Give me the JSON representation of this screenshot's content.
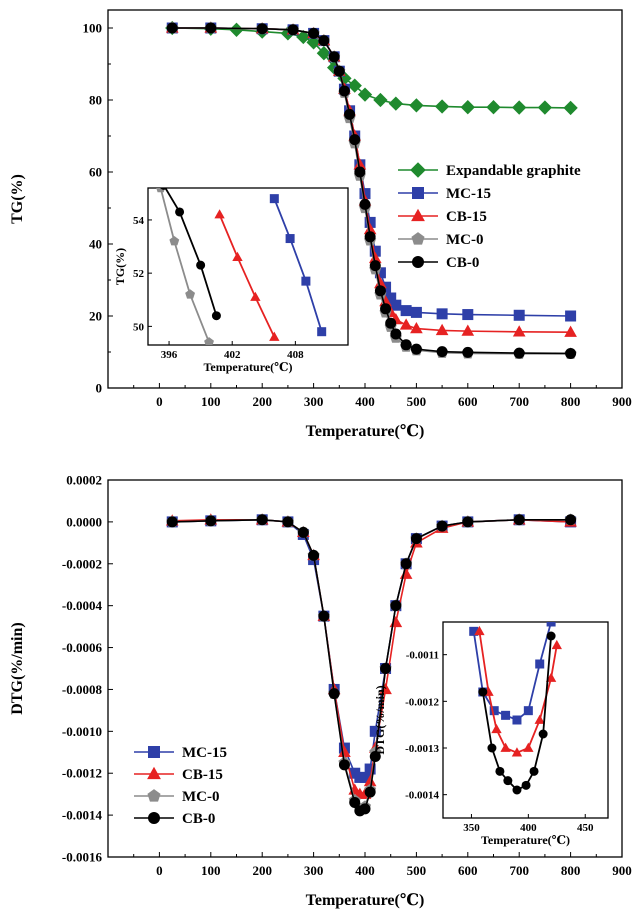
{
  "chart_data": [
    {
      "type": "line",
      "xlabel": "Temperature(℃)",
      "ylabel": "TG(%)",
      "xlim": [
        -100,
        900
      ],
      "ylim": [
        0,
        105
      ],
      "xticks": [
        "0",
        "100",
        "200",
        "300",
        "400",
        "500",
        "600",
        "700",
        "800",
        "900"
      ],
      "yticks": [
        "0",
        "20",
        "40",
        "60",
        "80",
        "100"
      ],
      "legend_position": "right",
      "series": [
        {
          "name": "Expandable graphite",
          "color": "#1f8a2e",
          "marker": "diamond",
          "x": [
            25,
            100,
            150,
            200,
            250,
            280,
            300,
            320,
            340,
            360,
            380,
            400,
            430,
            460,
            500,
            550,
            600,
            650,
            700,
            750,
            800
          ],
          "y": [
            100,
            99.8,
            99.5,
            99,
            98.5,
            97.5,
            96,
            93,
            89,
            86,
            84,
            81.5,
            80,
            79,
            78.5,
            78.2,
            78,
            78,
            77.9,
            77.9,
            77.8
          ]
        },
        {
          "name": "MC-15",
          "color": "#2e3fa8",
          "marker": "square",
          "x": [
            25,
            100,
            200,
            260,
            300,
            320,
            340,
            350,
            360,
            370,
            380,
            390,
            400,
            410,
            420,
            430,
            440,
            450,
            460,
            480,
            500,
            550,
            600,
            700,
            800
          ],
          "y": [
            100,
            100,
            99.8,
            99.5,
            98.5,
            96.5,
            92,
            88,
            83,
            77,
            70,
            62,
            54,
            46,
            38,
            32,
            28,
            25,
            23,
            21.5,
            21,
            20.6,
            20.4,
            20.2,
            20
          ]
        },
        {
          "name": "CB-15",
          "color": "#e62222",
          "marker": "triangle",
          "x": [
            25,
            100,
            200,
            260,
            300,
            320,
            340,
            350,
            360,
            370,
            380,
            390,
            400,
            410,
            420,
            430,
            440,
            450,
            460,
            480,
            500,
            550,
            600,
            700,
            800
          ],
          "y": [
            100,
            100,
            99.8,
            99.5,
            98.5,
            96.5,
            92,
            88,
            83,
            77,
            70,
            62,
            52,
            44,
            36,
            29,
            24,
            21,
            19,
            17.5,
            16.5,
            16,
            15.8,
            15.6,
            15.5
          ]
        },
        {
          "name": "MC-0",
          "color": "#8c8c8c",
          "marker": "pentagon",
          "x": [
            25,
            100,
            200,
            260,
            300,
            320,
            340,
            350,
            360,
            370,
            380,
            390,
            400,
            410,
            420,
            430,
            440,
            450,
            460,
            480,
            500,
            550,
            600,
            700,
            800
          ],
          "y": [
            100,
            100,
            99.8,
            99.5,
            98.5,
            96.5,
            92,
            88,
            82,
            75,
            68,
            59,
            50,
            41,
            33,
            26,
            21,
            17,
            14,
            11.5,
            10.5,
            9.8,
            9.6,
            9.5,
            9.5
          ]
        },
        {
          "name": "CB-0",
          "color": "#000000",
          "marker": "circle",
          "x": [
            25,
            100,
            200,
            260,
            300,
            320,
            340,
            350,
            360,
            370,
            380,
            390,
            400,
            410,
            420,
            430,
            440,
            450,
            460,
            480,
            500,
            550,
            600,
            700,
            800
          ],
          "y": [
            100,
            100,
            99.8,
            99.5,
            98.5,
            96.5,
            92,
            88,
            82.5,
            76,
            69,
            60,
            51,
            42,
            34,
            27,
            22,
            18,
            15,
            12,
            10.8,
            10.1,
            9.9,
            9.7,
            9.6
          ]
        }
      ],
      "inset": {
        "xlabel": "Temperature(℃)",
        "ylabel": "TG(%)",
        "xlim": [
          394,
          413
        ],
        "ylim": [
          49.3,
          55.2
        ],
        "xticks": [
          "396",
          "402",
          "408"
        ],
        "yticks": [
          "50",
          "52",
          "54"
        ],
        "series": [
          {
            "name": "MC-15",
            "x": [
              406,
              407.5,
              409,
              410.5
            ],
            "y": [
              54.8,
              53.3,
              51.7,
              49.8
            ]
          },
          {
            "name": "CB-15",
            "x": [
              400.8,
              402.5,
              404.2,
              406
            ],
            "y": [
              54.2,
              52.6,
              51.1,
              49.6
            ]
          },
          {
            "name": "MC-0",
            "x": [
              395.2,
              396.5,
              398,
              399.8
            ],
            "y": [
              55.2,
              53.2,
              51.2,
              49.4
            ]
          },
          {
            "name": "CB-0",
            "x": [
              395.5,
              397,
              399,
              400.5
            ],
            "y": [
              55.3,
              54.3,
              52.3,
              50.4
            ]
          }
        ]
      }
    },
    {
      "type": "line",
      "xlabel": "Temperature(℃)",
      "ylabel": "DTG(%/min)",
      "xlim": [
        -100,
        900
      ],
      "ylim": [
        -0.0016,
        0.0002
      ],
      "xticks": [
        "0",
        "100",
        "200",
        "300",
        "400",
        "500",
        "600",
        "700",
        "800",
        "900"
      ],
      "yticks": [
        "0.0002",
        "0.0000",
        "-0.0002",
        "-0.0004",
        "-0.0006",
        "-0.0008",
        "-0.0010",
        "-0.0012",
        "-0.0014",
        "-0.0016"
      ],
      "legend_position": "bottom-left",
      "series": [
        {
          "name": "MC-15",
          "color": "#2e3fa8",
          "marker": "square",
          "x": [
            25,
            100,
            200,
            250,
            280,
            300,
            320,
            340,
            360,
            380,
            390,
            400,
            410,
            420,
            440,
            460,
            480,
            500,
            550,
            600,
            700,
            800
          ],
          "y": [
            0,
            5e-06,
            1e-05,
            0,
            -6e-05,
            -0.00018,
            -0.00045,
            -0.0008,
            -0.00108,
            -0.0012,
            -0.00122,
            -0.00122,
            -0.00118,
            -0.001,
            -0.0007,
            -0.0004,
            -0.0002,
            -8e-05,
            -2e-05,
            0,
            1e-05,
            0
          ]
        },
        {
          "name": "CB-15",
          "color": "#e62222",
          "marker": "triangle",
          "x": [
            25,
            100,
            200,
            250,
            280,
            300,
            320,
            340,
            360,
            380,
            390,
            400,
            410,
            420,
            440,
            460,
            480,
            500,
            550,
            600,
            700,
            800
          ],
          "y": [
            5e-06,
            1e-05,
            1e-05,
            0,
            -5e-05,
            -0.00016,
            -0.00045,
            -0.0008,
            -0.0011,
            -0.00128,
            -0.0013,
            -0.0013,
            -0.00124,
            -0.00108,
            -0.0008,
            -0.00048,
            -0.00025,
            -0.0001,
            -3e-05,
            0,
            1e-05,
            0
          ]
        },
        {
          "name": "MC-0",
          "color": "#8c8c8c",
          "marker": "pentagon",
          "x": [
            25,
            100,
            200,
            250,
            280,
            300,
            320,
            340,
            360,
            380,
            390,
            400,
            410,
            420,
            440,
            460,
            480,
            500,
            550,
            600,
            700,
            800
          ],
          "y": [
            0,
            5e-06,
            1e-05,
            0,
            -5e-05,
            -0.00016,
            -0.00045,
            -0.00082,
            -0.00115,
            -0.00133,
            -0.00137,
            -0.00136,
            -0.00128,
            -0.0011,
            -0.0007,
            -0.0004,
            -0.0002,
            -8e-05,
            -2e-05,
            0,
            1e-05,
            1e-05
          ]
        },
        {
          "name": "CB-0",
          "color": "#000000",
          "marker": "circle",
          "x": [
            25,
            100,
            200,
            250,
            280,
            300,
            320,
            340,
            360,
            380,
            390,
            400,
            410,
            420,
            440,
            460,
            480,
            500,
            550,
            600,
            700,
            800
          ],
          "y": [
            0,
            5e-06,
            1e-05,
            0,
            -5e-05,
            -0.00016,
            -0.00045,
            -0.00082,
            -0.00116,
            -0.00134,
            -0.00138,
            -0.00137,
            -0.00129,
            -0.00112,
            -0.0007,
            -0.0004,
            -0.0002,
            -8e-05,
            -2e-05,
            0,
            1e-05,
            1e-05
          ]
        }
      ],
      "inset": {
        "xlabel": "Temperature(℃)",
        "ylabel": "DTG(%/min)",
        "xlim": [
          325,
          470
        ],
        "ylim": [
          -0.00145,
          -0.00103
        ],
        "xticks": [
          "350",
          "400",
          "450"
        ],
        "yticks": [
          "-0.0011",
          "-0.0012",
          "-0.0013",
          "-0.0014"
        ],
        "series": [
          {
            "name": "MC-15",
            "x": [
              352,
              360,
              370,
              380,
              390,
              400,
              410,
              420
            ],
            "y": [
              -0.00105,
              -0.00118,
              -0.00122,
              -0.00123,
              -0.00124,
              -0.00122,
              -0.00112,
              -0.00103
            ]
          },
          {
            "name": "CB-15",
            "x": [
              357,
              365,
              372,
              380,
              390,
              400,
              410,
              420,
              425
            ],
            "y": [
              -0.00105,
              -0.00118,
              -0.00126,
              -0.0013,
              -0.00131,
              -0.0013,
              -0.00124,
              -0.00115,
              -0.00108
            ]
          },
          {
            "name": "CB-0",
            "x": [
              360,
              368,
              375,
              382,
              390,
              398,
              405,
              413,
              420
            ],
            "y": [
              -0.00118,
              -0.0013,
              -0.00135,
              -0.00137,
              -0.00139,
              -0.00138,
              -0.00135,
              -0.00127,
              -0.00106
            ]
          }
        ]
      }
    }
  ]
}
